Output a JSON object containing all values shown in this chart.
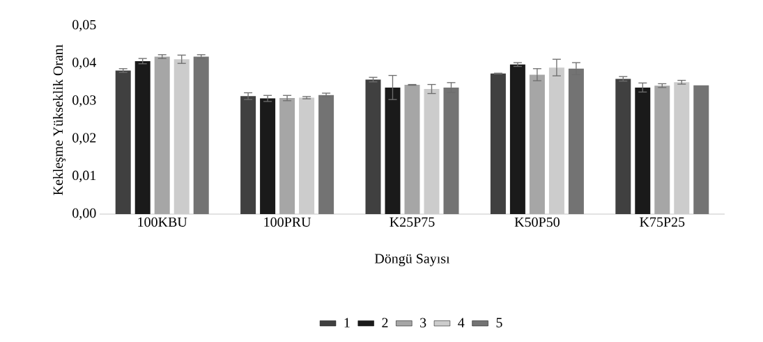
{
  "chart_data": {
    "type": "bar",
    "xlabel": "Döngü Sayısı",
    "ylabel": "Kekleşme Yükseklik Oranı",
    "categories": [
      "100KBU",
      "100PRU",
      "K25P75",
      "K50P50",
      "K75P25"
    ],
    "series": [
      {
        "name": "1",
        "color": "#404040",
        "values": [
          0.0381,
          0.0313,
          0.0357,
          0.0373,
          0.0359
        ],
        "errors": [
          0.0005,
          0.0009,
          0.0006,
          0.0001,
          0.0006
        ]
      },
      {
        "name": "2",
        "color": "#1a1a1a",
        "values": [
          0.0406,
          0.0307,
          0.0336,
          0.0397,
          0.0336
        ],
        "errors": [
          0.0007,
          0.0008,
          0.0032,
          0.0005,
          0.0012
        ]
      },
      {
        "name": "3",
        "color": "#a6a6a6",
        "values": [
          0.0418,
          0.0308,
          0.0343,
          0.037,
          0.0341
        ],
        "errors": [
          0.0005,
          0.0007,
          0.0001,
          0.0016,
          0.0005
        ]
      },
      {
        "name": "4",
        "color": "#cccccc",
        "values": [
          0.0411,
          0.0309,
          0.0332,
          0.0389,
          0.035
        ],
        "errors": [
          0.0011,
          0.0003,
          0.0012,
          0.0022,
          0.0005
        ]
      },
      {
        "name": "5",
        "color": "#737373",
        "values": [
          0.0418,
          0.0316,
          0.0336,
          0.0386,
          0.0342
        ],
        "errors": [
          0.0005,
          0.0005,
          0.0013,
          0.0016,
          null
        ]
      }
    ],
    "ylim": [
      0,
      0.05
    ],
    "yticks": [
      {
        "value": 0,
        "label": "0,00"
      },
      {
        "value": 0.01,
        "label": "0,01"
      },
      {
        "value": 0.02,
        "label": "0,02"
      },
      {
        "value": 0.03,
        "label": "0,03"
      },
      {
        "value": 0.04,
        "label": "0,04"
      },
      {
        "value": 0.05,
        "label": "0,05"
      }
    ],
    "grid": false,
    "legend": "bottom"
  }
}
